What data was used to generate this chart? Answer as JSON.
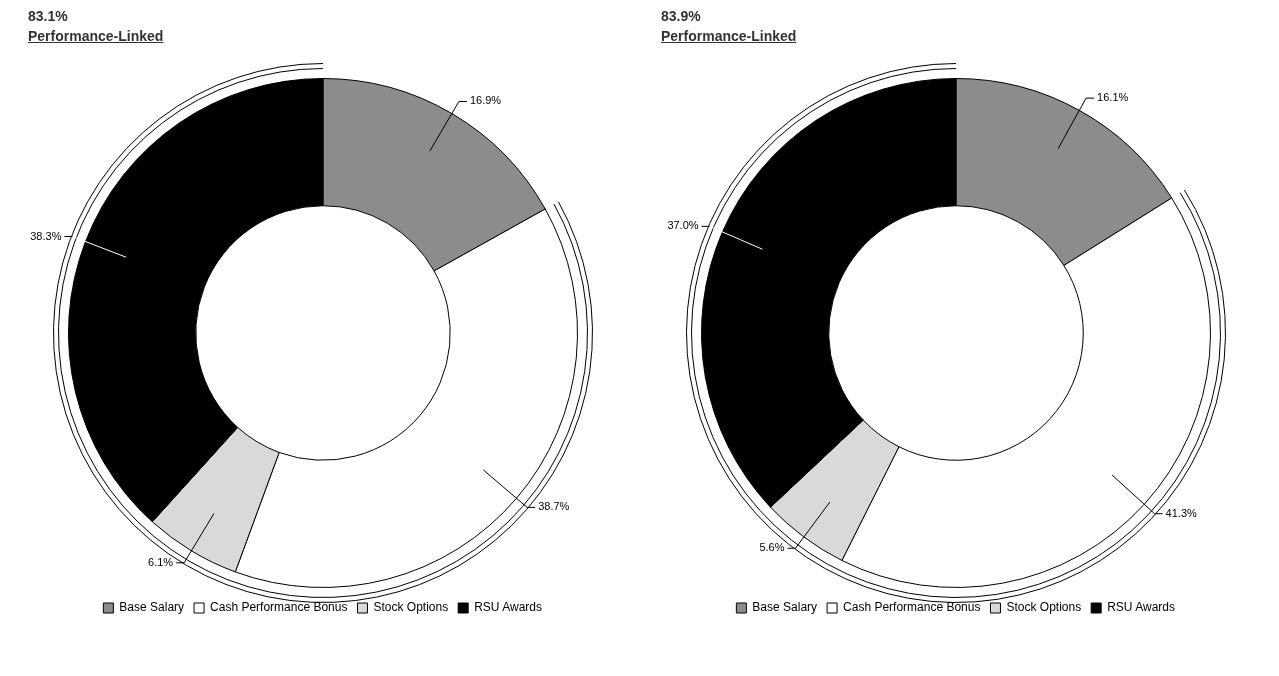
{
  "chart_data": [
    {
      "type": "donut",
      "title": "83.1%",
      "subtitle": "Performance-Linked",
      "categories": [
        "Base Salary",
        "Cash Performance Bonus",
        "Stock Options",
        "RSU Awards"
      ],
      "values": [
        16.9,
        38.7,
        6.1,
        38.3
      ],
      "colors": [
        "#8c8c8c",
        "#ffffff",
        "#d9d9d9",
        "#000000"
      ],
      "value_labels": [
        "16.9%",
        "38.7%",
        "6.1%",
        "38.3%"
      ],
      "legend": "bottom"
    },
    {
      "type": "donut",
      "title": "83.9%",
      "subtitle": "Performance-Linked",
      "categories": [
        "Base Salary",
        "Cash Performance Bonus",
        "Stock Options",
        "RSU Awards"
      ],
      "values": [
        16.1,
        41.3,
        5.6,
        37.0
      ],
      "colors": [
        "#8c8c8c",
        "#ffffff",
        "#d9d9d9",
        "#000000"
      ],
      "value_labels": [
        "16.1%",
        "41.3%",
        "5.6%",
        "37.0%"
      ],
      "legend": "bottom"
    }
  ]
}
